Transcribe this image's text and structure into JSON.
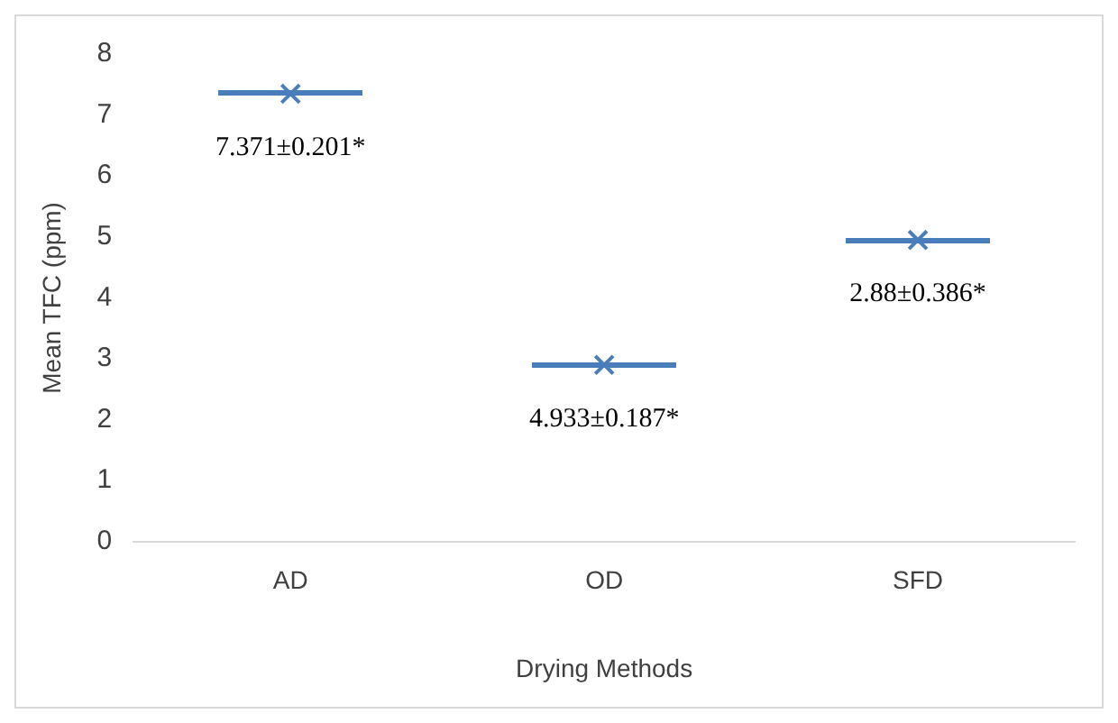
{
  "chart_data": {
    "type": "scatter",
    "xlabel": "Drying Methods",
    "ylabel": "Mean TFC (ppm)",
    "categories": [
      "AD",
      "OD",
      "SFD"
    ],
    "values": [
      7.35,
      2.9,
      4.95
    ],
    "color": "#4a7ebb",
    "marker": "cross",
    "ylim": [
      0,
      8
    ],
    "yticks": [
      0,
      1,
      2,
      3,
      4,
      5,
      6,
      7,
      8
    ],
    "grid": false,
    "legend": false,
    "annotations": [
      "7.371±0.201*",
      "4.933±0.187*",
      "2.88±0.386*"
    ]
  }
}
